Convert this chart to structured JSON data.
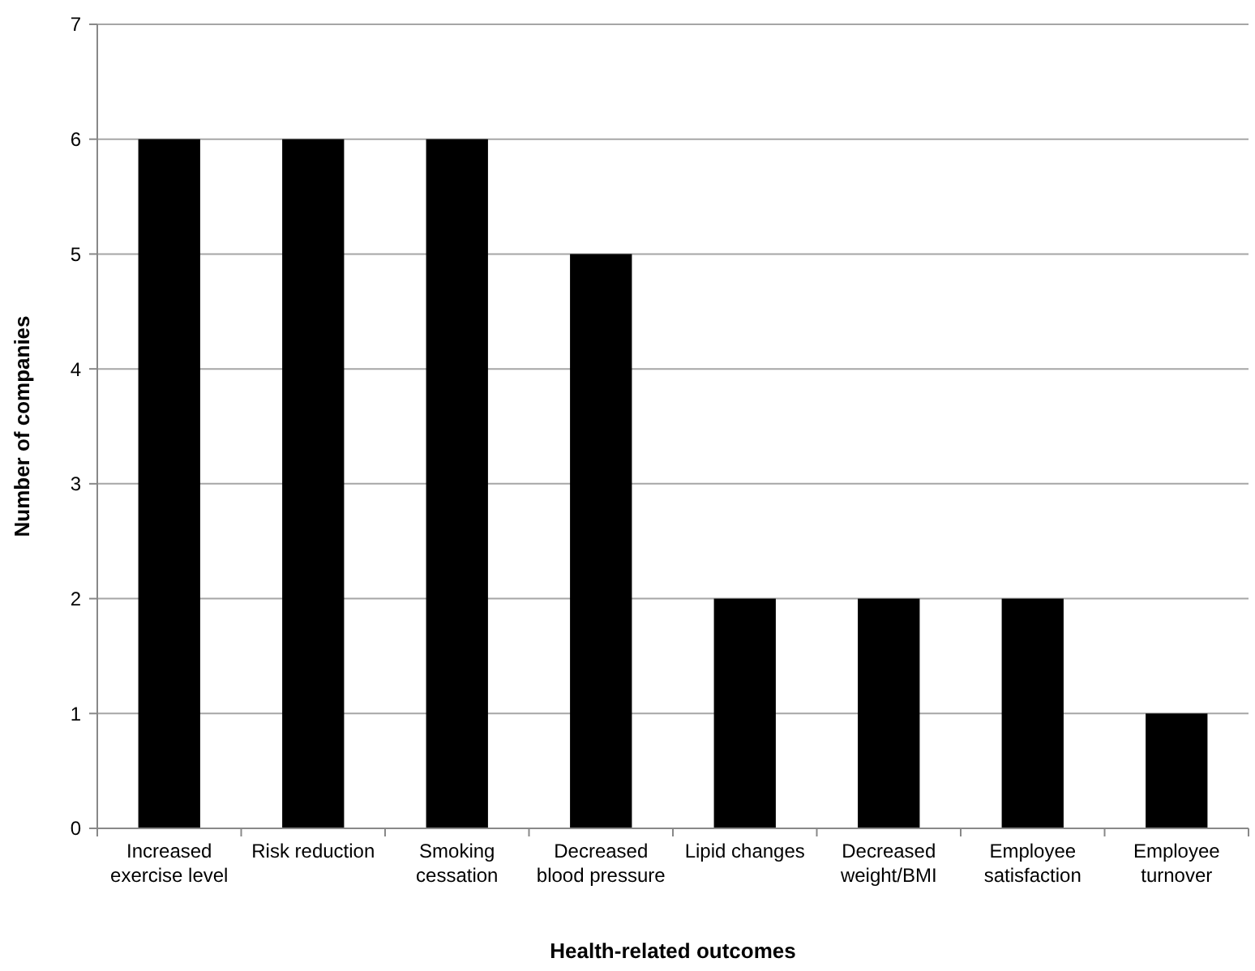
{
  "chart_data": {
    "type": "bar",
    "xlabel": "Health-related outcomes",
    "ylabel": "Number of companies",
    "categories": [
      "Increased exercise level",
      "Risk reduction",
      "Smoking cessation",
      "Decreased blood pressure",
      "Lipid changes",
      "Decreased weight/BMI",
      "Employee satisfaction",
      "Employee turnover"
    ],
    "values": [
      6,
      6,
      6,
      5,
      2,
      2,
      2,
      1
    ],
    "color": "#000000",
    "ylim": [
      0,
      7
    ],
    "yticks": [
      0,
      1,
      2,
      3,
      4,
      5,
      6,
      7
    ],
    "grid": "y"
  }
}
